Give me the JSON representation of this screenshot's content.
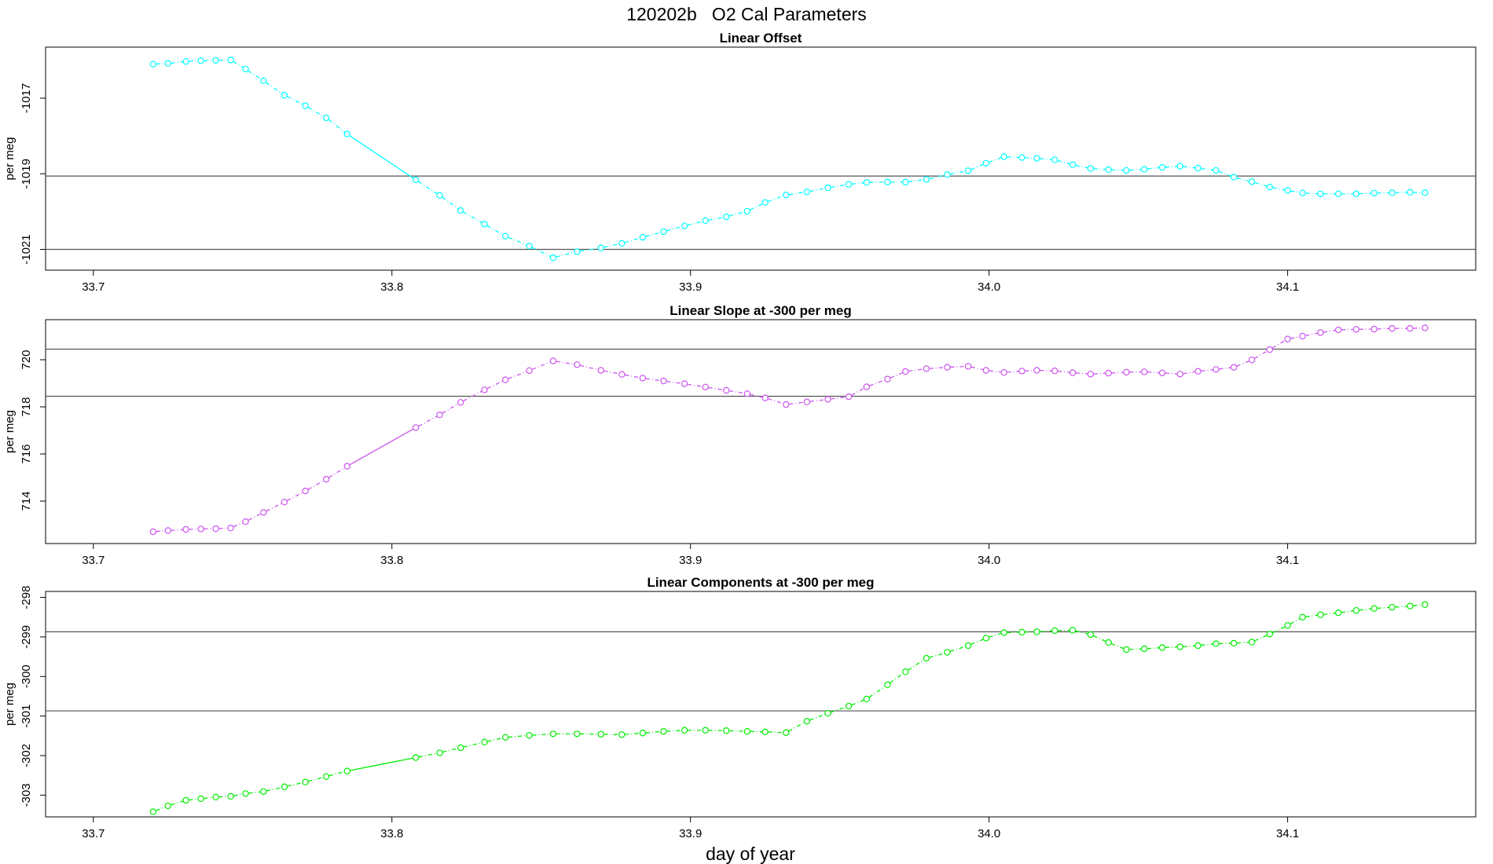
{
  "figure": {
    "title": "120202b   O2 Cal Parameters",
    "xlabel": "day of year"
  },
  "chart_data": [
    {
      "type": "line",
      "title": "Linear Offset",
      "ylabel": "per meg",
      "color": "#00ffff",
      "xlim": [
        33.684,
        34.163
      ],
      "ylim": [
        -1021.55,
        -1015.65
      ],
      "xticks": [
        33.7,
        33.8,
        33.9,
        34.0,
        34.1
      ],
      "xtick_labels": [
        "33.7",
        "33.8",
        "33.9",
        "34.0",
        "34.1"
      ],
      "yticks": [
        -1017,
        -1019,
        -1021
      ],
      "ytick_labels": [
        "-1017",
        "-1019",
        "-1021"
      ],
      "hlines": [
        -1019.06,
        -1021.0
      ],
      "x": [
        33.72,
        33.725,
        33.731,
        33.736,
        33.741,
        33.746,
        33.751,
        33.757,
        33.764,
        33.771,
        33.778,
        33.785,
        33.808,
        33.816,
        33.823,
        33.831,
        33.838,
        33.846,
        33.854,
        33.862,
        33.87,
        33.877,
        33.884,
        33.891,
        33.898,
        33.905,
        33.912,
        33.919,
        33.925,
        33.932,
        33.939,
        33.946,
        33.953,
        33.959,
        33.966,
        33.972,
        33.979,
        33.986,
        33.993,
        33.999,
        34.005,
        34.011,
        34.016,
        34.022,
        34.028,
        34.034,
        34.04,
        34.046,
        34.052,
        34.058,
        34.064,
        34.07,
        34.076,
        34.082,
        34.088,
        34.094,
        34.1,
        34.105,
        34.111,
        34.117,
        34.123,
        34.129,
        34.135,
        34.141,
        34.146
      ],
      "y": [
        -1016.1,
        -1016.08,
        -1016.03,
        -1016.01,
        -1016.0,
        -1015.99,
        -1016.23,
        -1016.54,
        -1016.92,
        -1017.2,
        -1017.52,
        -1017.95,
        -1019.16,
        -1019.57,
        -1019.97,
        -1020.33,
        -1020.65,
        -1020.91,
        -1021.22,
        -1021.06,
        -1020.96,
        -1020.84,
        -1020.68,
        -1020.53,
        -1020.38,
        -1020.24,
        -1020.14,
        -1019.99,
        -1019.76,
        -1019.56,
        -1019.48,
        -1019.37,
        -1019.28,
        -1019.23,
        -1019.22,
        -1019.22,
        -1019.15,
        -1019.02,
        -1018.92,
        -1018.72,
        -1018.55,
        -1018.57,
        -1018.59,
        -1018.63,
        -1018.76,
        -1018.86,
        -1018.89,
        -1018.91,
        -1018.88,
        -1018.83,
        -1018.8,
        -1018.85,
        -1018.91,
        -1019.09,
        -1019.21,
        -1019.35,
        -1019.44,
        -1019.51,
        -1019.53,
        -1019.53,
        -1019.53,
        -1019.51,
        -1019.5,
        -1019.49,
        -1019.5
      ]
    },
    {
      "type": "line",
      "title": "Linear Slope at -300 per meg",
      "ylabel": "per meg",
      "color": "#cc55ee",
      "xlim": [
        33.684,
        34.163
      ],
      "ylim": [
        712.2,
        721.7
      ],
      "xticks": [
        33.7,
        33.8,
        33.9,
        34.0,
        34.1
      ],
      "xtick_labels": [
        "33.7",
        "33.8",
        "33.9",
        "34.0",
        "34.1"
      ],
      "yticks": [
        714,
        716,
        718,
        720
      ],
      "ytick_labels": [
        "714",
        "716",
        "718",
        "720"
      ],
      "hlines": [
        720.45,
        718.45
      ],
      "x": [
        33.72,
        33.725,
        33.731,
        33.736,
        33.741,
        33.746,
        33.751,
        33.757,
        33.764,
        33.771,
        33.778,
        33.785,
        33.808,
        33.816,
        33.823,
        33.831,
        33.838,
        33.846,
        33.854,
        33.862,
        33.87,
        33.877,
        33.884,
        33.891,
        33.898,
        33.905,
        33.912,
        33.919,
        33.925,
        33.932,
        33.939,
        33.946,
        33.953,
        33.959,
        33.966,
        33.972,
        33.979,
        33.986,
        33.993,
        33.999,
        34.005,
        34.011,
        34.016,
        34.022,
        34.028,
        34.034,
        34.04,
        34.046,
        34.052,
        34.058,
        34.064,
        34.07,
        34.076,
        34.082,
        34.088,
        34.094,
        34.1,
        34.105,
        34.111,
        34.117,
        34.123,
        34.129,
        34.135,
        34.141,
        34.146
      ],
      "y": [
        712.7,
        712.75,
        712.8,
        712.82,
        712.83,
        712.86,
        713.13,
        713.52,
        713.96,
        714.43,
        714.93,
        715.48,
        717.12,
        717.66,
        718.19,
        718.72,
        719.15,
        719.54,
        719.95,
        719.79,
        719.55,
        719.38,
        719.22,
        719.1,
        718.98,
        718.84,
        718.7,
        718.56,
        718.38,
        718.1,
        718.21,
        718.32,
        718.43,
        718.85,
        719.18,
        719.5,
        719.62,
        719.68,
        719.72,
        719.55,
        719.46,
        719.52,
        719.55,
        719.53,
        719.45,
        719.39,
        719.43,
        719.47,
        719.49,
        719.44,
        719.39,
        719.51,
        719.59,
        719.68,
        719.99,
        720.43,
        720.88,
        721.0,
        721.15,
        721.27,
        721.29,
        721.3,
        721.33,
        721.33,
        721.35
      ]
    },
    {
      "type": "line",
      "title": "Linear Components at -300 per meg",
      "ylabel": "per meg",
      "color": "#00ee00",
      "xlim": [
        33.684,
        34.163
      ],
      "ylim": [
        -303.55,
        -297.85
      ],
      "xticks": [
        33.7,
        33.8,
        33.9,
        34.0,
        34.1
      ],
      "xtick_labels": [
        "33.7",
        "33.8",
        "33.9",
        "34.0",
        "34.1"
      ],
      "yticks": [
        -303,
        -302,
        -301,
        -300,
        -299,
        -298
      ],
      "ytick_labels": [
        "-303",
        "-302",
        "-301",
        "-300",
        "-299",
        "-298"
      ],
      "hlines": [
        -298.87,
        -300.87
      ],
      "x": [
        33.72,
        33.725,
        33.731,
        33.736,
        33.741,
        33.746,
        33.751,
        33.757,
        33.764,
        33.771,
        33.778,
        33.785,
        33.808,
        33.816,
        33.823,
        33.831,
        33.838,
        33.846,
        33.854,
        33.862,
        33.87,
        33.877,
        33.884,
        33.891,
        33.898,
        33.905,
        33.912,
        33.919,
        33.925,
        33.932,
        33.939,
        33.946,
        33.953,
        33.959,
        33.966,
        33.972,
        33.979,
        33.986,
        33.993,
        33.999,
        34.005,
        34.011,
        34.016,
        34.022,
        34.028,
        34.034,
        34.04,
        34.046,
        34.052,
        34.058,
        34.064,
        34.07,
        34.076,
        34.082,
        34.088,
        34.094,
        34.1,
        34.105,
        34.111,
        34.117,
        34.123,
        34.129,
        34.135,
        34.141,
        34.146
      ],
      "y": [
        -303.42,
        -303.27,
        -303.13,
        -303.09,
        -303.05,
        -303.03,
        -302.96,
        -302.91,
        -302.79,
        -302.67,
        -302.53,
        -302.39,
        -302.05,
        -301.93,
        -301.8,
        -301.66,
        -301.54,
        -301.49,
        -301.45,
        -301.45,
        -301.46,
        -301.47,
        -301.43,
        -301.39,
        -301.36,
        -301.36,
        -301.37,
        -301.39,
        -301.4,
        -301.42,
        -301.13,
        -300.93,
        -300.75,
        -300.57,
        -300.21,
        -299.88,
        -299.54,
        -299.39,
        -299.22,
        -299.03,
        -298.89,
        -298.88,
        -298.87,
        -298.84,
        -298.83,
        -298.94,
        -299.14,
        -299.32,
        -299.3,
        -299.27,
        -299.25,
        -299.22,
        -299.17,
        -299.16,
        -299.13,
        -298.93,
        -298.71,
        -298.5,
        -298.44,
        -298.39,
        -298.33,
        -298.28,
        -298.25,
        -298.22,
        -298.18
      ]
    }
  ]
}
